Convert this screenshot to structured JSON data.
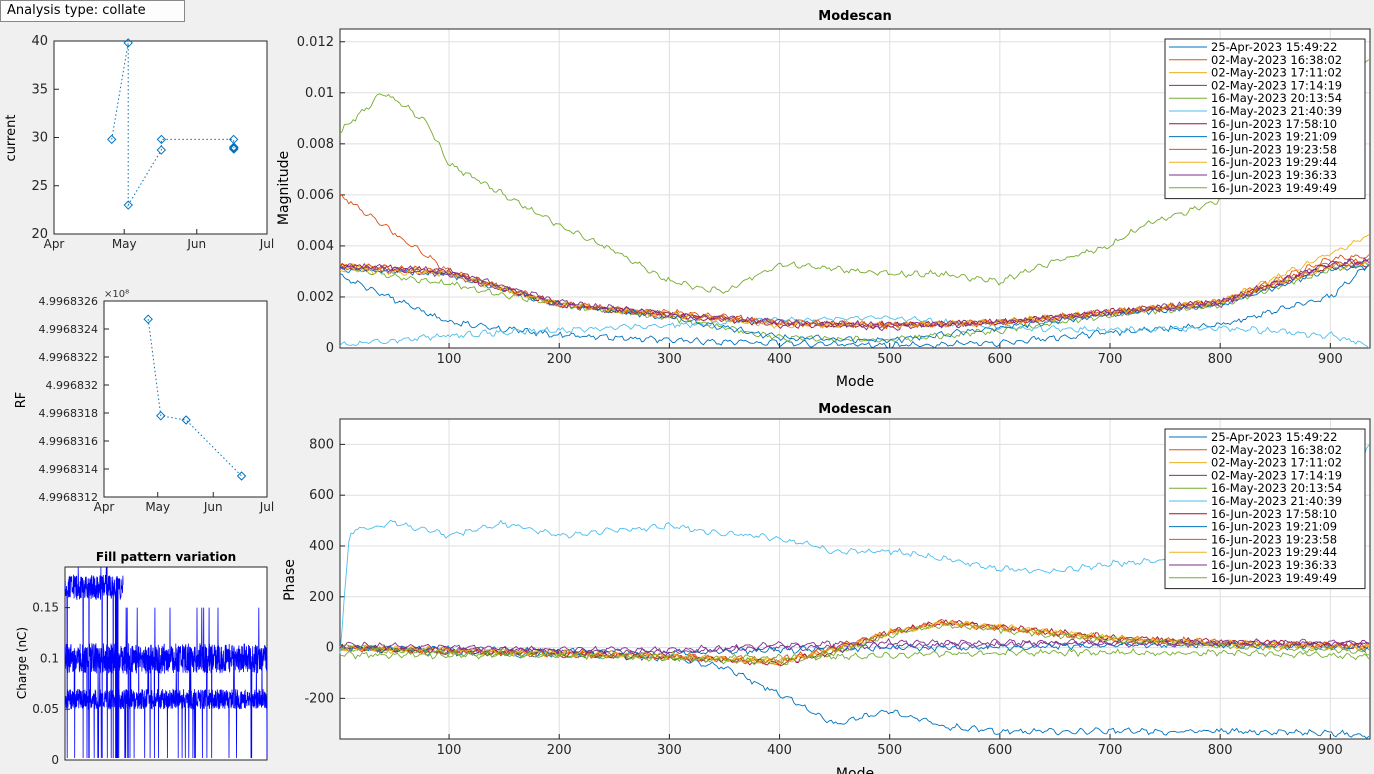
{
  "header": {
    "analysis_type_label": "Analysis type: collate"
  },
  "colors": {
    "series": [
      "#0072bd",
      "#d95319",
      "#edb120",
      "#7e2f8e",
      "#77ac30",
      "#4dbeee",
      "#a2142f",
      "#0072bd",
      "#d95319",
      "#edb120",
      "#7e2f8e",
      "#77ac30"
    ],
    "small_marker": "#0072bd",
    "fill_pattern": "#0000ff",
    "grid": "#dfdfdf"
  },
  "legend_entries": [
    "25-Apr-2023 15:49:22",
    "02-May-2023 16:38:02",
    "02-May-2023 17:11:02",
    "02-May-2023 17:14:19",
    "16-May-2023 20:13:54",
    "16-May-2023 21:40:39",
    "16-Jun-2023 17:58:10",
    "16-Jun-2023 19:21:09",
    "16-Jun-2023 19:23:58",
    "16-Jun-2023 19:29:44",
    "16-Jun-2023 19:36:33",
    "16-Jun-2023 19:49:49"
  ],
  "chart_data": [
    {
      "id": "current",
      "type": "scatter",
      "title": "",
      "xlabel": "",
      "ylabel": "current",
      "x_ticks": [
        "Apr",
        "May",
        "Jun",
        "Jul"
      ],
      "x_tick_values": [
        0,
        30,
        61,
        91
      ],
      "xlim": [
        0,
        91
      ],
      "ylim": [
        20,
        40
      ],
      "y_ticks": [
        "20",
        "25",
        "30",
        "35",
        "40"
      ],
      "y_tick_values": [
        20,
        25,
        30,
        35,
        40
      ],
      "grid": false,
      "line_style": "dotted-with-diamond-markers",
      "points": [
        {
          "date": "25-Apr-2023",
          "x": 24.66,
          "y": 29.8
        },
        {
          "date": "02-May-2023",
          "x": 31.7,
          "y": 39.8
        },
        {
          "date": "02-May-2023",
          "x": 31.72,
          "y": 23.0
        },
        {
          "date": "16-May-2023",
          "x": 45.84,
          "y": 28.7
        },
        {
          "date": "16-May-2023",
          "x": 45.9,
          "y": 29.8
        },
        {
          "date": "16-Jun-2023",
          "x": 76.75,
          "y": 29.8
        },
        {
          "date": "16-Jun-2023",
          "x": 76.8,
          "y": 29.0
        },
        {
          "date": "16-Jun-2023",
          "x": 76.81,
          "y": 28.9
        },
        {
          "date": "16-Jun-2023",
          "x": 76.82,
          "y": 29.0
        },
        {
          "date": "16-Jun-2023",
          "x": 76.83,
          "y": 28.8
        }
      ]
    },
    {
      "id": "rf",
      "type": "scatter",
      "title": "",
      "xlabel": "",
      "ylabel": "RF",
      "exponent_label": "×10⁸",
      "x_ticks": [
        "Apr",
        "May",
        "Jun",
        "Jul"
      ],
      "x_tick_values": [
        0,
        30,
        61,
        91
      ],
      "xlim": [
        0,
        91
      ],
      "ylim": [
        4.9968312,
        4.9968326
      ],
      "y_ticks": [
        "4.9968312",
        "4.9968314",
        "4.9968316",
        "4.9968318",
        "4.996832",
        "4.9968322",
        "4.9968324",
        "4.9968326"
      ],
      "y_tick_values": [
        4.9968312,
        4.9968314,
        4.9968316,
        4.9968318,
        4.996832,
        4.9968322,
        4.9968324,
        4.9968326
      ],
      "grid": false,
      "line_style": "dotted-with-diamond-markers",
      "points": [
        {
          "date": "25-Apr-2023",
          "x": 24.66,
          "y": 4.99683247
        },
        {
          "date": "02-May-2023",
          "x": 31.7,
          "y": 4.99683178
        },
        {
          "date": "16-May-2023",
          "x": 45.84,
          "y": 4.99683175
        },
        {
          "date": "16-Jun-2023",
          "x": 76.8,
          "y": 4.99683135
        }
      ]
    },
    {
      "id": "fill",
      "type": "line",
      "title": "Fill pattern variation",
      "xlabel": "",
      "ylabel": "Charge (nC)",
      "xlim": [
        1,
        936
      ],
      "ylim": [
        0,
        0.19
      ],
      "y_ticks": [
        "0",
        "0.05",
        "0.1",
        "0.15"
      ],
      "y_tick_values": [
        0,
        0.05,
        0.1,
        0.15
      ],
      "x_ticks": [],
      "grid": false,
      "levels": [
        0.06,
        0.1,
        0.17
      ],
      "note_values": "dense overlapping traces of bunch charge around 0.06, 0.1 and 0.17 nC with dropouts to 0"
    },
    {
      "id": "mag",
      "type": "line",
      "title": "Modescan",
      "xlabel": "Mode",
      "ylabel": "Magnitude",
      "xlim": [
        1,
        936
      ],
      "ylim": [
        0,
        0.0125
      ],
      "x_ticks": [
        "100",
        "200",
        "300",
        "400",
        "500",
        "600",
        "700",
        "800",
        "900"
      ],
      "x_tick_values": [
        100,
        200,
        300,
        400,
        500,
        600,
        700,
        800,
        900
      ],
      "y_ticks": [
        "0",
        "0.002",
        "0.004",
        "0.006",
        "0.008",
        "0.01",
        "0.012"
      ],
      "y_tick_values": [
        0,
        0.002,
        0.004,
        0.006,
        0.008,
        0.01,
        0.012
      ],
      "grid": true,
      "legend_position": "top-right",
      "series": [
        {
          "name": "25-Apr-2023 15:49:22",
          "x": [
            1,
            100,
            200,
            300,
            400,
            500,
            600,
            700,
            800,
            900,
            936
          ],
          "y": [
            0.0028,
            0.001,
            0.0005,
            0.0003,
            0.0002,
            0.0001,
            0.0002,
            0.0006,
            0.0009,
            0.002,
            0.0033
          ]
        },
        {
          "name": "02-May-2023 16:38:02",
          "x": [
            1,
            100,
            200,
            300,
            400,
            500,
            600,
            700,
            800,
            900,
            936
          ],
          "y": [
            0.006,
            0.003,
            0.0017,
            0.0014,
            0.001,
            0.0009,
            0.001,
            0.0014,
            0.0018,
            0.0035,
            0.0036
          ]
        },
        {
          "name": "02-May-2023 17:11:02",
          "x": [
            1,
            100,
            200,
            300,
            400,
            500,
            600,
            700,
            800,
            900,
            936
          ],
          "y": [
            0.0033,
            0.0029,
            0.0017,
            0.0013,
            0.001,
            0.0009,
            0.001,
            0.0014,
            0.0018,
            0.0037,
            0.0044
          ]
        },
        {
          "name": "02-May-2023 17:14:19",
          "x": [
            1,
            100,
            200,
            300,
            400,
            500,
            600,
            700,
            800,
            900,
            936
          ],
          "y": [
            0.0032,
            0.0029,
            0.0017,
            0.0013,
            0.001,
            0.0008,
            0.001,
            0.0014,
            0.0017,
            0.0033,
            0.0034
          ]
        },
        {
          "name": "16-May-2023 20:13:54",
          "x": [
            1,
            50,
            100,
            200,
            300,
            400,
            500,
            600,
            700,
            800,
            900,
            936
          ],
          "y": [
            0.0032,
            0.0028,
            0.0025,
            0.0017,
            0.0012,
            0.0004,
            0.0003,
            0.0007,
            0.0013,
            0.0017,
            0.0031,
            0.0033
          ]
        },
        {
          "name": "16-May-2023 21:40:39",
          "x": [
            1,
            100,
            200,
            300,
            400,
            500,
            600,
            700,
            800,
            900,
            936
          ],
          "y": [
            0.0001,
            0.0005,
            0.0007,
            0.0009,
            0.0011,
            0.0012,
            0.0008,
            0.0007,
            0.0008,
            0.0005,
            0.0001
          ]
        },
        {
          "name": "16-Jun-2023 17:58:10",
          "x": [
            1,
            100,
            200,
            300,
            400,
            500,
            600,
            700,
            800,
            900,
            936
          ],
          "y": [
            0.0032,
            0.003,
            0.0017,
            0.0013,
            0.0009,
            0.0009,
            0.001,
            0.0014,
            0.0018,
            0.0032,
            0.0033
          ]
        },
        {
          "name": "16-Jun-2023 19:21:09",
          "x": [
            1,
            100,
            200,
            300,
            400,
            500,
            600,
            700,
            800,
            900,
            936
          ],
          "y": [
            0.0031,
            0.0029,
            0.0017,
            0.0012,
            0.0004,
            0.0003,
            0.0008,
            0.0013,
            0.0017,
            0.0031,
            0.0032
          ]
        },
        {
          "name": "16-Jun-2023 19:23:58",
          "x": [
            1,
            100,
            200,
            300,
            400,
            500,
            600,
            700,
            800,
            900,
            936
          ],
          "y": [
            0.0032,
            0.003,
            0.0017,
            0.0013,
            0.001,
            0.0009,
            0.001,
            0.0014,
            0.0018,
            0.0033,
            0.0034
          ]
        },
        {
          "name": "16-Jun-2023 19:29:44",
          "x": [
            1,
            100,
            200,
            300,
            400,
            500,
            600,
            700,
            800,
            900,
            936
          ],
          "y": [
            0.0031,
            0.0029,
            0.0017,
            0.0013,
            0.0009,
            0.0009,
            0.001,
            0.0014,
            0.0018,
            0.0032,
            0.0033
          ]
        },
        {
          "name": "16-Jun-2023 19:36:33",
          "x": [
            1,
            100,
            200,
            300,
            400,
            500,
            600,
            700,
            800,
            900,
            936
          ],
          "y": [
            0.0032,
            0.003,
            0.0018,
            0.0013,
            0.001,
            0.0009,
            0.001,
            0.0014,
            0.0018,
            0.0033,
            0.0034
          ]
        },
        {
          "name": "16-Jun-2023 19:49:49",
          "x": [
            1,
            20,
            40,
            60,
            80,
            100,
            150,
            200,
            250,
            300,
            350,
            400,
            450,
            500,
            550,
            600,
            650,
            700,
            730,
            760,
            800,
            850,
            900,
            936
          ],
          "y": [
            0.0085,
            0.0092,
            0.01,
            0.0095,
            0.0088,
            0.0072,
            0.006,
            0.0048,
            0.0038,
            0.0026,
            0.0022,
            0.0033,
            0.0031,
            0.0029,
            0.0029,
            0.0026,
            0.0034,
            0.004,
            0.0048,
            0.0052,
            0.0058,
            0.007,
            0.0085,
            0.0115
          ]
        }
      ]
    },
    {
      "id": "phase",
      "type": "line",
      "title": "Modescan",
      "xlabel": "Mode",
      "ylabel": "Phase",
      "xlim": [
        1,
        936
      ],
      "ylim": [
        -360,
        900
      ],
      "x_ticks": [
        "100",
        "200",
        "300",
        "400",
        "500",
        "600",
        "700",
        "800",
        "900"
      ],
      "x_tick_values": [
        100,
        200,
        300,
        400,
        500,
        600,
        700,
        800,
        900
      ],
      "y_ticks": [
        "-200",
        "0",
        "200",
        "400",
        "600",
        "800"
      ],
      "y_tick_values": [
        -200,
        0,
        200,
        400,
        600,
        800
      ],
      "grid": true,
      "legend_position": "top-right",
      "series": [
        {
          "name": "25-Apr-2023 15:49:22",
          "x": [
            1,
            100,
            200,
            300,
            350,
            400,
            450,
            500,
            550,
            600,
            700,
            800,
            900,
            936
          ],
          "y": [
            0,
            -20,
            -30,
            -40,
            -80,
            -180,
            -300,
            -250,
            -310,
            -330,
            -330,
            -330,
            -335,
            -350
          ]
        },
        {
          "name": "02-May-2023 16:38:02",
          "x": [
            1,
            100,
            200,
            300,
            400,
            450,
            500,
            550,
            600,
            700,
            800,
            900,
            936
          ],
          "y": [
            0,
            -10,
            -20,
            -35,
            -50,
            0,
            60,
            100,
            80,
            30,
            10,
            10,
            5
          ]
        },
        {
          "name": "02-May-2023 17:11:02",
          "x": [
            1,
            100,
            200,
            300,
            400,
            450,
            500,
            550,
            600,
            700,
            800,
            900,
            936
          ],
          "y": [
            -5,
            -15,
            -25,
            -35,
            -55,
            -10,
            60,
            95,
            80,
            35,
            10,
            0,
            0
          ]
        },
        {
          "name": "02-May-2023 17:14:19",
          "x": [
            1,
            100,
            200,
            300,
            400,
            500,
            600,
            700,
            800,
            900,
            936
          ],
          "y": [
            0,
            -10,
            -15,
            -20,
            0,
            5,
            10,
            15,
            15,
            15,
            15
          ]
        },
        {
          "name": "16-May-2023 20:13:54",
          "x": [
            1,
            100,
            200,
            300,
            400,
            500,
            600,
            700,
            800,
            900,
            936
          ],
          "y": [
            -30,
            -30,
            -30,
            -40,
            -40,
            -30,
            -20,
            -20,
            -20,
            -30,
            -40
          ]
        },
        {
          "name": "16-May-2023 21:40:39",
          "x": [
            1,
            10,
            50,
            100,
            150,
            200,
            300,
            350,
            400,
            450,
            500,
            550,
            600,
            650,
            700,
            800,
            900,
            936
          ],
          "y": [
            -20,
            460,
            490,
            440,
            490,
            440,
            480,
            450,
            430,
            380,
            380,
            350,
            310,
            300,
            330,
            360,
            400,
            820
          ]
        },
        {
          "name": "16-Jun-2023 17:58:10",
          "x": [
            1,
            100,
            200,
            300,
            400,
            450,
            500,
            550,
            600,
            700,
            800,
            900,
            936
          ],
          "y": [
            0,
            -15,
            -20,
            -40,
            -60,
            -20,
            60,
            100,
            80,
            40,
            20,
            10,
            5
          ]
        },
        {
          "name": "16-Jun-2023 19:21:09",
          "x": [
            1,
            100,
            200,
            300,
            400,
            500,
            600,
            700,
            800,
            900,
            936
          ],
          "y": [
            0,
            -5,
            -15,
            -20,
            -10,
            0,
            0,
            10,
            10,
            0,
            -5
          ]
        },
        {
          "name": "16-Jun-2023 19:23:58",
          "x": [
            1,
            100,
            200,
            300,
            400,
            450,
            500,
            550,
            600,
            700,
            800,
            900,
            936
          ],
          "y": [
            0,
            -15,
            -25,
            -35,
            -60,
            0,
            60,
            100,
            75,
            40,
            20,
            10,
            5
          ]
        },
        {
          "name": "16-Jun-2023 19:29:44",
          "x": [
            1,
            100,
            200,
            300,
            400,
            450,
            500,
            550,
            600,
            700,
            800,
            900,
            936
          ],
          "y": [
            0,
            -10,
            -20,
            -30,
            -55,
            -10,
            55,
            95,
            80,
            40,
            20,
            5,
            0
          ]
        },
        {
          "name": "16-Jun-2023 19:36:33",
          "x": [
            1,
            100,
            200,
            300,
            400,
            500,
            600,
            700,
            800,
            900,
            936
          ],
          "y": [
            10,
            0,
            -10,
            -10,
            10,
            20,
            20,
            20,
            20,
            20,
            20
          ]
        },
        {
          "name": "16-Jun-2023 19:49:49",
          "x": [
            1,
            100,
            200,
            300,
            400,
            450,
            500,
            550,
            600,
            700,
            800,
            900,
            936
          ],
          "y": [
            0,
            -20,
            -30,
            -40,
            -60,
            -20,
            50,
            90,
            70,
            30,
            10,
            -10,
            -20
          ]
        }
      ]
    }
  ]
}
